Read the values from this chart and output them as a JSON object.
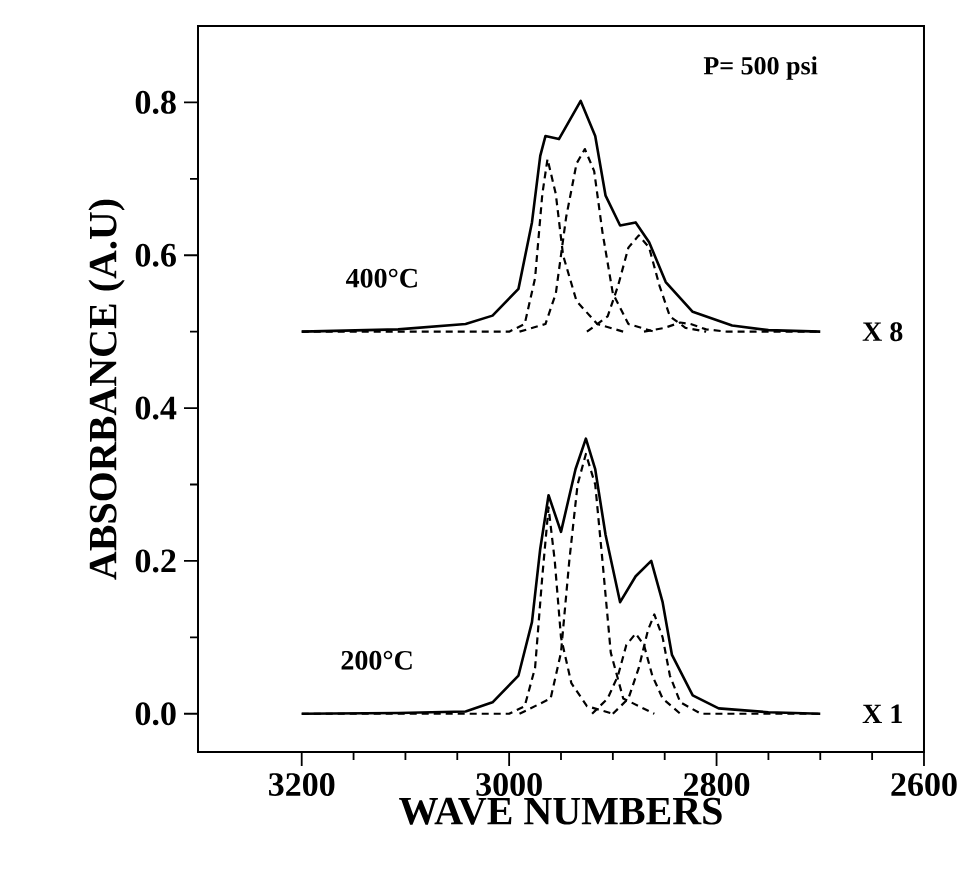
{
  "chart_data": {
    "type": "line",
    "xlabel": "WAVE NUMBERS",
    "ylabel": "ABSORBANCE (A.U)",
    "xlim": [
      3300,
      2600
    ],
    "xticks": [
      3200,
      3000,
      2800,
      2600
    ],
    "ylim": [
      -0.05,
      0.9
    ],
    "yticks": [
      {
        "value": 0,
        "label": "0.0"
      },
      0.2,
      0.4,
      0.6,
      0.8
    ],
    "marker": "none",
    "annotations": [
      "P= 500 psi",
      "400°C",
      "X 8",
      "200°C",
      "X 1"
    ],
    "series": [
      {
        "color": "#000000",
        "line_style": "solid",
        "x": [
          3200,
          3107,
          3042,
          3016,
          2991,
          2978,
          2970,
          2962,
          2950,
          2936,
          2926,
          2917,
          2907,
          2893,
          2878,
          2863,
          2852,
          2843,
          2823,
          2798,
          2750,
          2700
        ],
        "values": [
          0,
          0.001,
          0.003,
          0.015,
          0.05,
          0.12,
          0.216,
          0.286,
          0.238,
          0.32,
          0.36,
          0.32,
          0.234,
          0.146,
          0.18,
          0.2,
          0.146,
          0.077,
          0.024,
          0.007,
          0.002,
          0
        ]
      },
      {
        "color": "#000000",
        "line_style": "dashed",
        "x": [
          3200,
          3000,
          2985,
          2975,
          2968,
          2962,
          2956,
          2950,
          2940,
          2925,
          2900
        ],
        "values": [
          0,
          0,
          0.01,
          0.06,
          0.18,
          0.27,
          0.2,
          0.1,
          0.04,
          0.01,
          0
        ]
      },
      {
        "color": "#000000",
        "line_style": "dashed",
        "x": [
          2990,
          2960,
          2950,
          2942,
          2934,
          2926,
          2917,
          2910,
          2902,
          2890,
          2860
        ],
        "values": [
          0,
          0.02,
          0.08,
          0.2,
          0.3,
          0.34,
          0.3,
          0.2,
          0.08,
          0.02,
          0
        ]
      },
      {
        "color": "#000000",
        "line_style": "dashed",
        "x": [
          2920,
          2905,
          2895,
          2887,
          2878,
          2870,
          2862,
          2852,
          2835
        ],
        "values": [
          0,
          0.02,
          0.05,
          0.09,
          0.105,
          0.09,
          0.05,
          0.02,
          0
        ]
      },
      {
        "color": "#000000",
        "line_style": "dashed",
        "x": [
          2900,
          2885,
          2875,
          2866,
          2860,
          2852,
          2845,
          2835,
          2815,
          2700
        ],
        "values": [
          0,
          0.02,
          0.06,
          0.11,
          0.13,
          0.1,
          0.05,
          0.015,
          0,
          0
        ]
      },
      {
        "color": "#000000",
        "line_style": "solid",
        "x": [
          3200,
          3107,
          3042,
          3016,
          2991,
          2978,
          2970,
          2965,
          2952,
          2931,
          2917,
          2907,
          2893,
          2878,
          2865,
          2849,
          2823,
          2785,
          2750,
          2700
        ],
        "values": [
          0.5,
          0.503,
          0.51,
          0.521,
          0.556,
          0.643,
          0.73,
          0.756,
          0.752,
          0.802,
          0.756,
          0.678,
          0.639,
          0.643,
          0.617,
          0.565,
          0.526,
          0.508,
          0.502,
          0.5
        ]
      },
      {
        "color": "#000000",
        "line_style": "dashed",
        "x": [
          3200,
          3000,
          2985,
          2975,
          2968,
          2963,
          2955,
          2948,
          2935,
          2915,
          2890
        ],
        "values": [
          0.5,
          0.5,
          0.51,
          0.57,
          0.68,
          0.726,
          0.68,
          0.6,
          0.54,
          0.51,
          0.5
        ]
      },
      {
        "color": "#000000",
        "line_style": "dashed",
        "x": [
          2990,
          2965,
          2955,
          2945,
          2935,
          2927,
          2918,
          2910,
          2900,
          2885,
          2860
        ],
        "values": [
          0.5,
          0.51,
          0.55,
          0.65,
          0.72,
          0.739,
          0.71,
          0.63,
          0.55,
          0.51,
          0.5
        ]
      },
      {
        "color": "#000000",
        "line_style": "dashed",
        "x": [
          2925,
          2905,
          2895,
          2885,
          2875,
          2865,
          2855,
          2845,
          2830,
          2810
        ],
        "values": [
          0.5,
          0.52,
          0.56,
          0.61,
          0.626,
          0.61,
          0.56,
          0.52,
          0.505,
          0.5
        ]
      },
      {
        "color": "#000000",
        "line_style": "dashed",
        "x": [
          2870,
          2850,
          2835,
          2825,
          2810,
          2790,
          2700
        ],
        "values": [
          0.5,
          0.505,
          0.512,
          0.51,
          0.503,
          0.5,
          0.5
        ]
      }
    ]
  }
}
